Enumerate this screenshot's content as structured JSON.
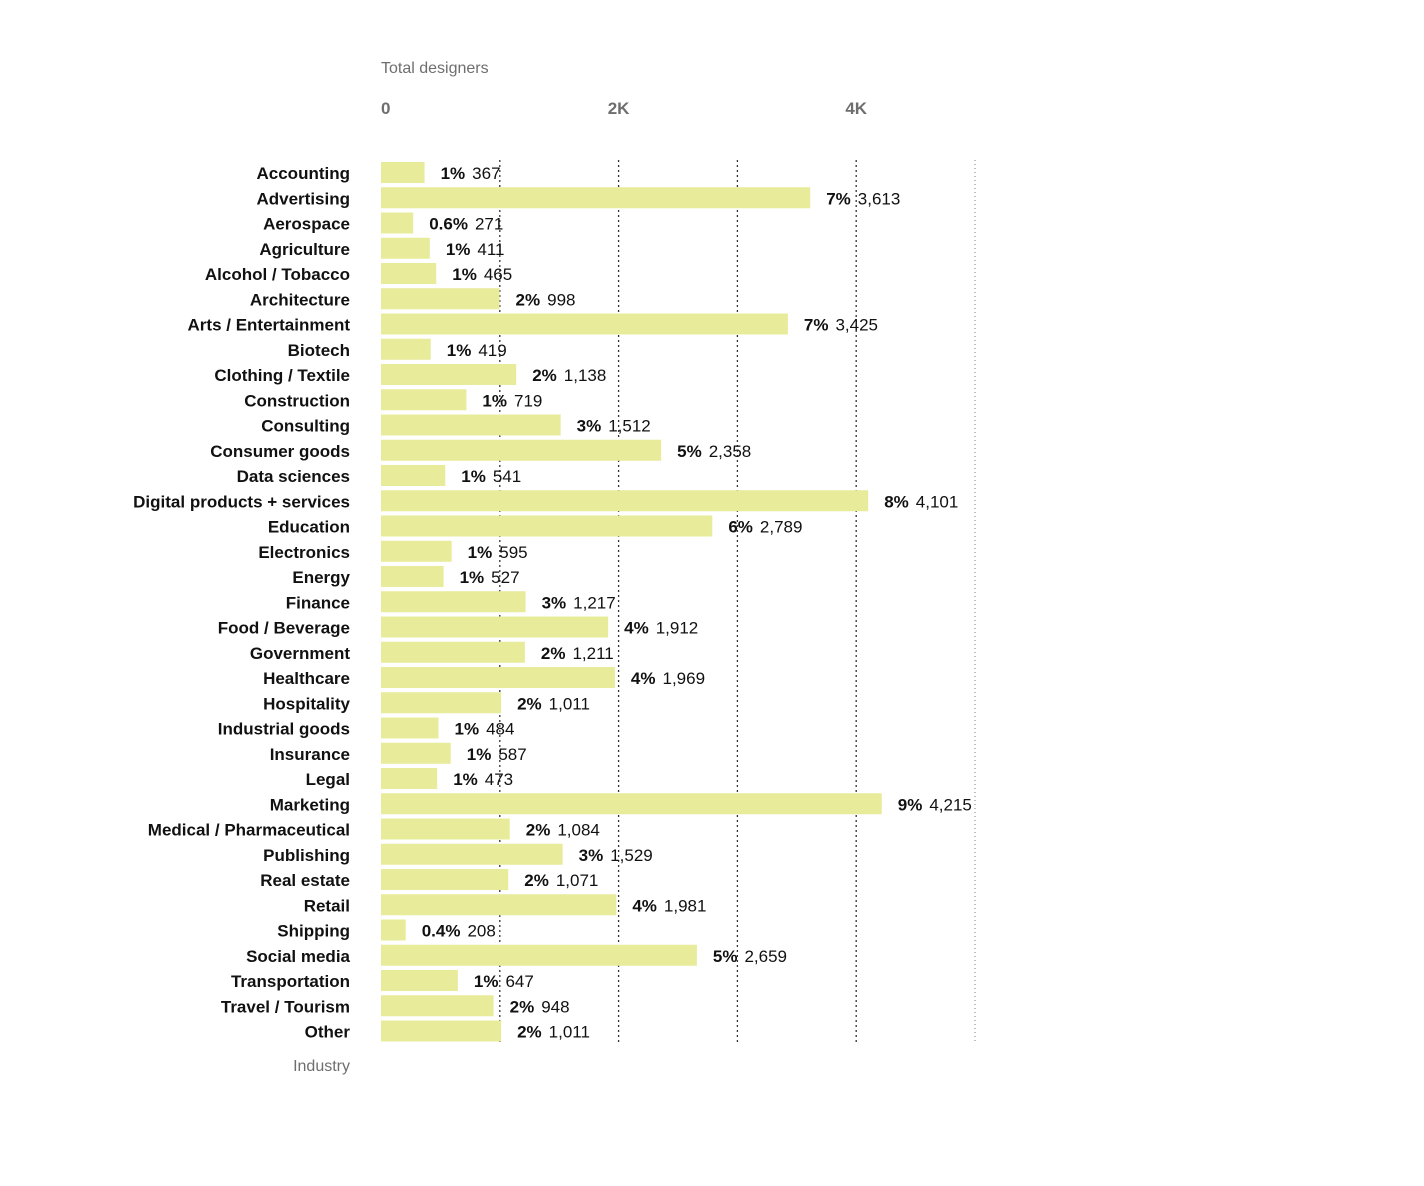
{
  "chart_data": {
    "type": "bar",
    "orientation": "horizontal",
    "title": "Total designers",
    "ylabel": "Industry",
    "xlim": [
      0,
      5000
    ],
    "x_ticks": [
      {
        "value": 0,
        "label": "0"
      },
      {
        "value": 2000,
        "label": "2K"
      },
      {
        "value": 4000,
        "label": "4K"
      }
    ],
    "gridlines": [
      1000,
      2000,
      3000,
      4000,
      5000
    ],
    "bar_color": "#e8ec9a",
    "categories": [
      "Accounting",
      "Advertising",
      "Aerospace",
      "Agriculture",
      "Alcohol / Tobacco",
      "Architecture",
      "Arts / Entertainment",
      "Biotech",
      "Clothing / Textile",
      "Construction",
      "Consulting",
      "Consumer goods",
      "Data sciences",
      "Digital products + services",
      "Education",
      "Electronics",
      "Energy",
      "Finance",
      "Food / Beverage",
      "Government",
      "Healthcare",
      "Hospitality",
      "Industrial goods",
      "Insurance",
      "Legal",
      "Marketing",
      "Medical / Pharmaceutical",
      "Publishing",
      "Real estate",
      "Retail",
      "Shipping",
      "Social media",
      "Transportation",
      "Travel / Tourism",
      "Other"
    ],
    "values": [
      367,
      3613,
      271,
      411,
      465,
      998,
      3425,
      419,
      1138,
      719,
      1512,
      2358,
      541,
      4101,
      2789,
      595,
      527,
      1217,
      1912,
      1211,
      1969,
      1011,
      484,
      587,
      473,
      4215,
      1084,
      1529,
      1071,
      1981,
      208,
      2659,
      647,
      948,
      1011
    ],
    "value_labels": [
      "367",
      "3,613",
      "271",
      "411",
      "465",
      "998",
      "3,425",
      "419",
      "1,138",
      "719",
      "1,512",
      "2,358",
      "541",
      "4,101",
      "2,789",
      "595",
      "527",
      "1,217",
      "1,912",
      "1,211",
      "1,969",
      "1,011",
      "484",
      "587",
      "473",
      "4,215",
      "1,084",
      "1,529",
      "1,071",
      "1,981",
      "208",
      "2,659",
      "647",
      "948",
      "1,011"
    ],
    "percent_labels": [
      "1%",
      "7%",
      "0.6%",
      "1%",
      "1%",
      "2%",
      "7%",
      "1%",
      "2%",
      "1%",
      "3%",
      "5%",
      "1%",
      "8%",
      "6%",
      "1%",
      "1%",
      "3%",
      "4%",
      "2%",
      "4%",
      "2%",
      "1%",
      "1%",
      "1%",
      "9%",
      "2%",
      "3%",
      "2%",
      "4%",
      "0.4%",
      "5%",
      "1%",
      "2%",
      "2%"
    ]
  }
}
